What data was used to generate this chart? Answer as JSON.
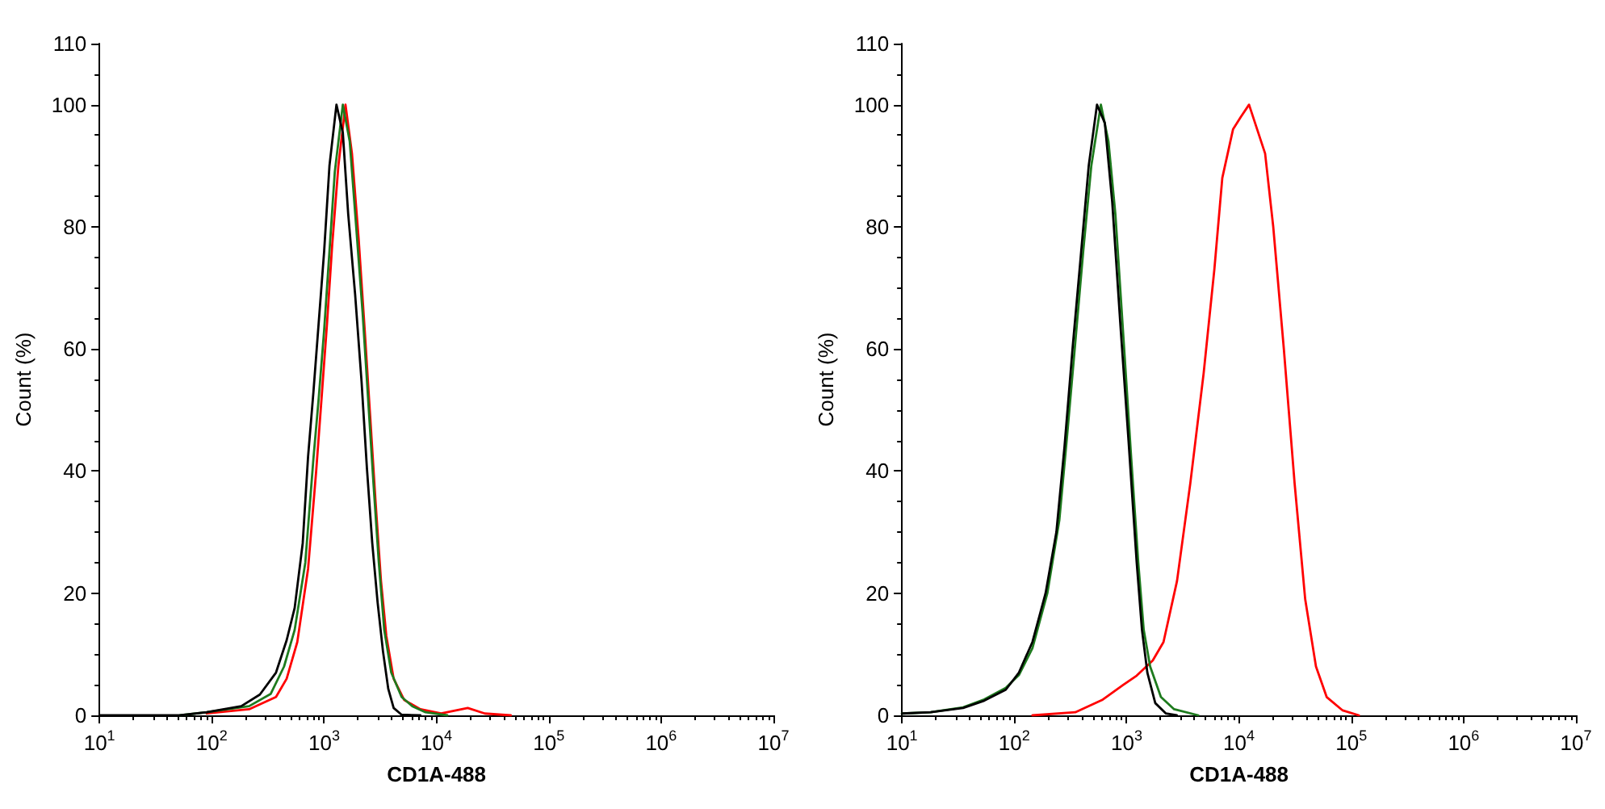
{
  "chart_data": [
    {
      "type": "line",
      "xlabel": "CD1A-488",
      "ylabel": "Count (%)",
      "log": "x",
      "marker": "none",
      "line_style": "solid",
      "xlim": [
        10,
        10000000
      ],
      "xticks": [
        {
          "value": 10,
          "label": "10$^{1}$"
        },
        {
          "value": 100,
          "label": "10$^{2}$"
        },
        {
          "value": 1000,
          "label": "10$^{3}$"
        },
        {
          "value": 10000,
          "label": "10$^{4}$"
        },
        {
          "value": 100000,
          "label": "10$^{5}$"
        },
        {
          "value": 1000000,
          "label": "10$^{6}$"
        },
        {
          "value": 10000000,
          "label": "10$^{7}$"
        }
      ],
      "ylim": [
        0,
        110
      ],
      "yticks": [
        0,
        20,
        40,
        60,
        80,
        100,
        110
      ],
      "series": [
        {
          "color": "#ff0000",
          "x": [
            90,
            215,
            373,
            464,
            577,
            720,
            850,
            950,
            1060,
            1180,
            1340,
            1550,
            1770,
            2030,
            2300,
            2570,
            2870,
            3210,
            3580,
            4160,
            5170,
            7200,
            11000,
            19000,
            27000,
            46000
          ],
          "values": [
            0.3,
            1,
            3,
            6,
            12,
            24,
            40,
            52,
            64,
            77,
            90,
            100,
            92,
            78,
            63,
            49,
            35,
            22,
            13,
            6,
            2.5,
            1,
            0.3,
            1.2,
            0.3,
            0
          ]
        },
        {
          "color": "#1e7b1e",
          "x": [
            52,
            90,
            215,
            334,
            440,
            547,
            680,
            803,
            896,
            1000,
            1116,
            1245,
            1468,
            1690,
            1930,
            2200,
            2460,
            2750,
            3070,
            3430,
            3960,
            4900,
            6100,
            8000,
            12500
          ],
          "values": [
            0,
            0.5,
            1.5,
            3.5,
            8,
            14,
            25,
            42,
            52,
            63,
            76,
            89,
            100,
            94,
            80,
            66,
            52,
            38,
            25,
            14,
            7,
            3,
            1.5,
            0.5,
            0
          ]
        },
        {
          "color": "#000000",
          "x": [
            10,
            52,
            90,
            183,
            268,
            373,
            464,
            547,
            645,
            720,
            803,
            896,
            1000,
            1116,
            1288,
            1468,
            1638,
            1889,
            2154,
            2404,
            2683,
            2994,
            3342,
            3728,
            4160,
            4898,
            7197
          ],
          "values": [
            0,
            0,
            0.5,
            1.5,
            3.4,
            7,
            12.3,
            17.6,
            28.2,
            42.4,
            52.9,
            64.4,
            75.9,
            90,
            100,
            95.4,
            82.1,
            68.9,
            54.7,
            40.5,
            28.2,
            18.5,
            10.5,
            4.3,
            1.2,
            0.1,
            0
          ]
        }
      ]
    },
    {
      "type": "line",
      "xlabel": "CD1A-488",
      "ylabel": "Count (%)",
      "log": "x",
      "marker": "none",
      "line_style": "solid",
      "xlim": [
        10,
        10000000
      ],
      "xticks": [
        {
          "value": 10,
          "label": "10$^{1}$"
        },
        {
          "value": 100,
          "label": "10$^{2}$"
        },
        {
          "value": 1000,
          "label": "10$^{3}$"
        },
        {
          "value": 10000,
          "label": "10$^{4}$"
        },
        {
          "value": 100000,
          "label": "10$^{5}$"
        },
        {
          "value": 1000000,
          "label": "10$^{6}$"
        },
        {
          "value": 10000000,
          "label": "10$^{7}$"
        }
      ],
      "ylim": [
        0,
        110
      ],
      "yticks": [
        0,
        20,
        40,
        60,
        80,
        100,
        110
      ],
      "series": [
        {
          "color": "#ff0000",
          "x": [
            145,
            349,
            604,
            936,
            1230,
            1710,
            2130,
            2810,
            3690,
            4850,
            6040,
            7110,
            8870,
            10400,
            12300,
            14500,
            17100,
            20200,
            25100,
            31300,
            38900,
            48500,
            60400,
            83900,
            117000
          ],
          "values": [
            0,
            0.5,
            2.5,
            5,
            6.5,
            9,
            12,
            22,
            38,
            56,
            73,
            88,
            96,
            98,
            100,
            96,
            92,
            80,
            60,
            38,
            19,
            8,
            3,
            0.8,
            0
          ]
        },
        {
          "color": "#1e7b1e",
          "x": [
            10,
            18,
            35,
            54,
            84,
            110,
            145,
            197,
            252,
            296,
            349,
            411,
            485,
            590,
            689,
            795,
            936,
            1100,
            1270,
            1420,
            1620,
            2020,
            2650,
            4350
          ],
          "values": [
            0.3,
            0.5,
            1.3,
            2.6,
            4.5,
            6.6,
            11,
            20,
            32,
            46,
            61,
            76,
            90,
            100,
            94,
            82,
            62,
            42,
            25,
            14,
            8,
            3,
            1,
            0
          ]
        },
        {
          "color": "#000000",
          "x": [
            10,
            18,
            35,
            54,
            84,
            110,
            145,
            190,
            237,
            280,
            330,
            390,
            460,
            545,
            640,
            745,
            880,
            1040,
            1230,
            1370,
            1530,
            1800,
            2240,
            2800
          ],
          "values": [
            0.3,
            0.5,
            1.2,
            2.4,
            4.2,
            7,
            12,
            20,
            30,
            44,
            60,
            75,
            90,
            100,
            97,
            84,
            64,
            45,
            25,
            14,
            7,
            2,
            0.3,
            0
          ]
        }
      ]
    }
  ]
}
